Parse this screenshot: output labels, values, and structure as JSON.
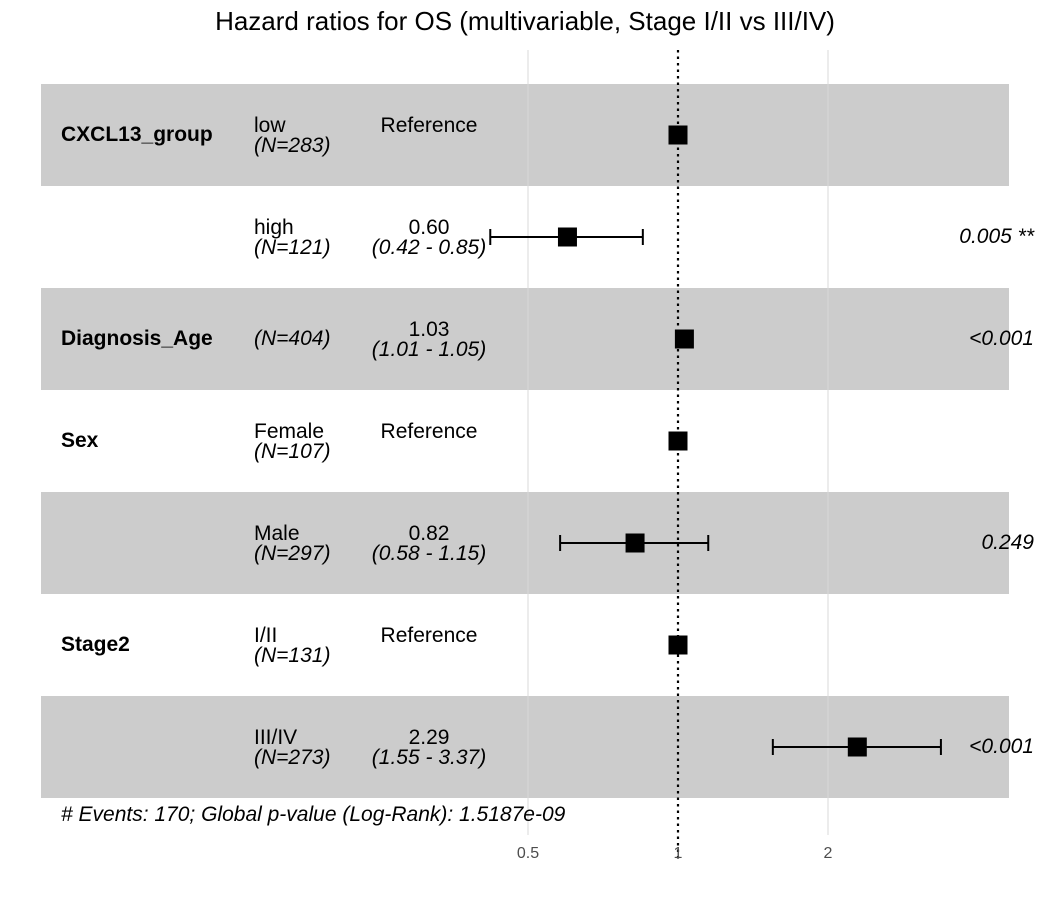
{
  "chart_data": {
    "type": "forest",
    "title": "Hazard ratios for OS (multivariable, Stage I/II vs III/IV)",
    "x_scale": "log",
    "x_ticks": [
      0.5,
      1,
      2
    ],
    "x_tick_labels": [
      "0.5",
      "1",
      "2"
    ],
    "reference_line": 1,
    "rows": [
      {
        "variable": "CXCL13_group",
        "level": "low",
        "n": "(N=283)",
        "hr_text": "Reference",
        "ci_text": "",
        "p": "",
        "hr": 1,
        "lower": null,
        "upper": null,
        "shaded": true
      },
      {
        "variable": "",
        "level": "high",
        "n": "(N=121)",
        "hr_text": "0.60",
        "ci_text": "(0.42 - 0.85)",
        "p": "0.005 **",
        "hr": 0.6,
        "lower": 0.42,
        "upper": 0.85,
        "shaded": false
      },
      {
        "variable": "Diagnosis_Age",
        "level": "",
        "n": "(N=404)",
        "hr_text": "1.03",
        "ci_text": "(1.01 - 1.05)",
        "p": "<0.001",
        "hr": 1.03,
        "lower": 1.01,
        "upper": 1.05,
        "shaded": true
      },
      {
        "variable": "Sex",
        "level": "Female",
        "n": "(N=107)",
        "hr_text": "Reference",
        "ci_text": "",
        "p": "",
        "hr": 1,
        "lower": null,
        "upper": null,
        "shaded": false
      },
      {
        "variable": "",
        "level": "Male",
        "n": "(N=297)",
        "hr_text": "0.82",
        "ci_text": "(0.58 - 1.15)",
        "p": "0.249",
        "hr": 0.82,
        "lower": 0.58,
        "upper": 1.15,
        "shaded": true
      },
      {
        "variable": "Stage2",
        "level": "I/II",
        "n": "(N=131)",
        "hr_text": "Reference",
        "ci_text": "",
        "p": "",
        "hr": 1,
        "lower": null,
        "upper": null,
        "shaded": false
      },
      {
        "variable": "",
        "level": "III/IV",
        "n": "(N=273)",
        "hr_text": "2.29",
        "ci_text": "(1.55 - 3.37)",
        "p": "<0.001",
        "hr": 2.29,
        "lower": 1.55,
        "upper": 3.37,
        "shaded": true
      }
    ],
    "footer": "# Events: 170; Global p-value (Log-Rank): 1.5187e-09"
  }
}
